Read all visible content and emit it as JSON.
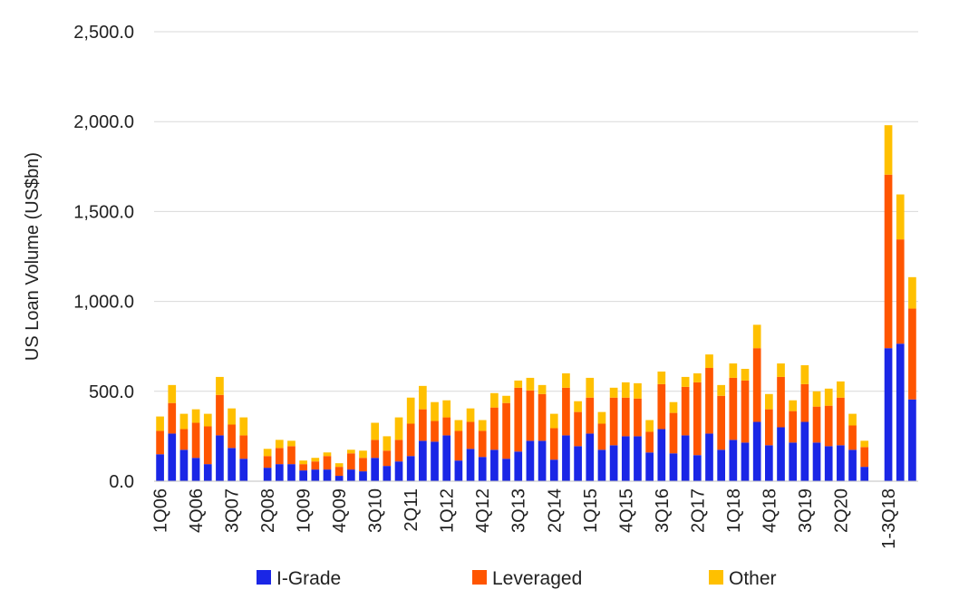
{
  "chart_data": {
    "type": "bar",
    "stacked": true,
    "ylabel": "US Loan Volume (US$bn)",
    "ylim": [
      0,
      2500
    ],
    "yticks": [
      "0.0",
      "500.0",
      "1,000.0",
      "1,500.0",
      "2,000.0",
      "2,500.0"
    ],
    "grid": true,
    "legend_position": "bottom",
    "x_tick_labels": [
      "1Q06",
      "4Q06",
      "3Q07",
      "2Q08",
      "1Q09",
      "4Q09",
      "3Q10",
      "2Q11",
      "1Q12",
      "4Q12",
      "3Q13",
      "2Q14",
      "1Q15",
      "4Q15",
      "3Q16",
      "2Q17",
      "1Q18",
      "4Q18",
      "3Q19",
      "2Q20",
      "1-3Q18"
    ],
    "colors": {
      "I-Grade": "#1a26e6",
      "Leveraged": "#ff5500",
      "Other": "#ffc000"
    },
    "series": [
      {
        "name": "I-Grade",
        "values": [
          150,
          265,
          175,
          130,
          95,
          255,
          185,
          125,
          0,
          75,
          95,
          95,
          60,
          65,
          65,
          30,
          65,
          55,
          130,
          85,
          110,
          140,
          225,
          220,
          255,
          115,
          180,
          135,
          175,
          125,
          165,
          225,
          225,
          120,
          255,
          195,
          265,
          175,
          200,
          250,
          250,
          160,
          290,
          155,
          255,
          145,
          265,
          175,
          230,
          215,
          330,
          200,
          300,
          215,
          330,
          215,
          195,
          200,
          175,
          80,
          0,
          740,
          765,
          455
        ]
      },
      {
        "name": "Leveraged",
        "values": [
          130,
          170,
          115,
          195,
          210,
          225,
          130,
          130,
          0,
          65,
          90,
          100,
          35,
          45,
          75,
          50,
          90,
          75,
          100,
          85,
          120,
          180,
          175,
          115,
          100,
          165,
          150,
          145,
          235,
          310,
          355,
          280,
          260,
          175,
          265,
          190,
          200,
          145,
          265,
          215,
          210,
          115,
          250,
          225,
          270,
          405,
          365,
          300,
          345,
          345,
          410,
          200,
          280,
          175,
          210,
          200,
          225,
          265,
          135,
          110,
          0,
          965,
          580,
          505
        ]
      },
      {
        "name": "Other",
        "values": [
          80,
          100,
          85,
          75,
          70,
          100,
          90,
          100,
          0,
          40,
          45,
          30,
          20,
          20,
          20,
          20,
          20,
          40,
          95,
          80,
          125,
          145,
          130,
          105,
          95,
          60,
          75,
          60,
          80,
          40,
          40,
          70,
          50,
          80,
          80,
          60,
          110,
          65,
          55,
          85,
          85,
          65,
          70,
          60,
          55,
          50,
          75,
          60,
          80,
          65,
          130,
          85,
          75,
          60,
          105,
          85,
          95,
          90,
          65,
          35,
          0,
          275,
          250,
          175
        ]
      }
    ]
  },
  "legend": {
    "items": [
      {
        "label": "I-Grade",
        "color": "#1a26e6"
      },
      {
        "label": "Leveraged",
        "color": "#ff5500"
      },
      {
        "label": "Other",
        "color": "#ffc000"
      }
    ]
  }
}
